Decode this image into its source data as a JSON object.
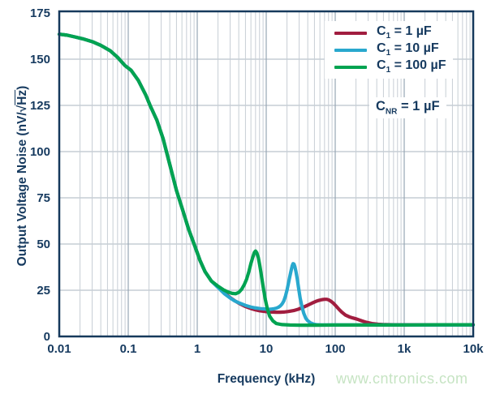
{
  "chart_data": {
    "type": "line",
    "title": "",
    "xlabel": "Frequency (kHz)",
    "ylabel": "Output Voltage Noise (nV/√Hz)",
    "ylabel_parts": {
      "pre": "Output Voltage Noise (nV/√",
      "over": "Hz",
      "post": ")"
    },
    "x_scale": "log",
    "xlim": [
      0.01,
      10000
    ],
    "ylim": [
      0,
      175
    ],
    "y_tick_step": 25,
    "x_tick_labels": [
      "0.01",
      "0.1",
      "1",
      "10",
      "100",
      "1k",
      "10k"
    ],
    "y_tick_labels": [
      "0",
      "25",
      "50",
      "75",
      "100",
      "125",
      "150",
      "175"
    ],
    "grid": "horizontal majors + vertical log minors, inside full frame",
    "legend_position": "top-right-inside",
    "annotation": {
      "label_pre": "C",
      "label_sub": "NR",
      "label_post": " = 1 µF"
    },
    "series": [
      {
        "name": "C1 = 1 uF",
        "label_pre": "C",
        "label_sub": "1",
        "label_post": " = 1 µF",
        "color": "#a11d3f",
        "points": [
          [
            0.01,
            163.5
          ],
          [
            0.013,
            163
          ],
          [
            0.017,
            162
          ],
          [
            0.022,
            161
          ],
          [
            0.03,
            159.5
          ],
          [
            0.04,
            157.5
          ],
          [
            0.055,
            154.5
          ],
          [
            0.07,
            151
          ],
          [
            0.09,
            146.5
          ],
          [
            0.11,
            144
          ],
          [
            0.14,
            138.5
          ],
          [
            0.18,
            130.5
          ],
          [
            0.21,
            124.5
          ],
          [
            0.26,
            117
          ],
          [
            0.32,
            107
          ],
          [
            0.4,
            93
          ],
          [
            0.5,
            79
          ],
          [
            0.62,
            68
          ],
          [
            0.75,
            58
          ],
          [
            0.9,
            50
          ],
          [
            1.1,
            41
          ],
          [
            1.3,
            35
          ],
          [
            1.6,
            30
          ],
          [
            2,
            27
          ],
          [
            2.5,
            23.5
          ],
          [
            3,
            21
          ],
          [
            3.5,
            19.3
          ],
          [
            4,
            18
          ],
          [
            5,
            16.2
          ],
          [
            6,
            15.1
          ],
          [
            7,
            14.4
          ],
          [
            8,
            13.9
          ],
          [
            10,
            13.4
          ],
          [
            12,
            13.2
          ],
          [
            14,
            13.1
          ],
          [
            16,
            13.1
          ],
          [
            18,
            13.2
          ],
          [
            21,
            13.5
          ],
          [
            25,
            14
          ],
          [
            29,
            14.7
          ],
          [
            34,
            15.7
          ],
          [
            40,
            16.9
          ],
          [
            46,
            18
          ],
          [
            52,
            18.9
          ],
          [
            58,
            19.5
          ],
          [
            64,
            19.9
          ],
          [
            70,
            20.1
          ],
          [
            75,
            20.1
          ],
          [
            80,
            19.8
          ],
          [
            87,
            19
          ],
          [
            94,
            18
          ],
          [
            102,
            16.6
          ],
          [
            112,
            14.9
          ],
          [
            124,
            13.2
          ],
          [
            140,
            11.6
          ],
          [
            160,
            10.6
          ],
          [
            180,
            10
          ],
          [
            205,
            9.4
          ],
          [
            240,
            8.5
          ],
          [
            280,
            7.7
          ],
          [
            340,
            7
          ],
          [
            420,
            6.6
          ],
          [
            520,
            6.4
          ],
          [
            700,
            6.3
          ],
          [
            1000,
            6.3
          ],
          [
            2500,
            6.3
          ],
          [
            5000,
            6.3
          ],
          [
            10000,
            6.3
          ]
        ]
      },
      {
        "name": "C1 = 10 uF",
        "label_pre": "C",
        "label_sub": "1",
        "label_post": " = 10 µF",
        "color": "#29a8ce",
        "points": [
          [
            0.01,
            163.5
          ],
          [
            0.013,
            163
          ],
          [
            0.017,
            162
          ],
          [
            0.022,
            161
          ],
          [
            0.03,
            159.5
          ],
          [
            0.04,
            157.5
          ],
          [
            0.055,
            154.5
          ],
          [
            0.07,
            151
          ],
          [
            0.09,
            146.5
          ],
          [
            0.11,
            144
          ],
          [
            0.14,
            138.5
          ],
          [
            0.18,
            130.5
          ],
          [
            0.21,
            124.5
          ],
          [
            0.26,
            117
          ],
          [
            0.32,
            107
          ],
          [
            0.4,
            93
          ],
          [
            0.5,
            79
          ],
          [
            0.62,
            68
          ],
          [
            0.75,
            58
          ],
          [
            0.9,
            50
          ],
          [
            1.1,
            41
          ],
          [
            1.3,
            35
          ],
          [
            1.6,
            30
          ],
          [
            2,
            26.5
          ],
          [
            2.5,
            23
          ],
          [
            3,
            20.8
          ],
          [
            3.5,
            19.2
          ],
          [
            4,
            18.2
          ],
          [
            5,
            16.8
          ],
          [
            6,
            15.9
          ],
          [
            7,
            15.4
          ],
          [
            8,
            15.1
          ],
          [
            9,
            14.9
          ],
          [
            10,
            14.8
          ],
          [
            11,
            14.7
          ],
          [
            12,
            14.8
          ],
          [
            13,
            15
          ],
          [
            14,
            15.3
          ],
          [
            15,
            15.8
          ],
          [
            16,
            16.5
          ],
          [
            17,
            17.6
          ],
          [
            18,
            19.2
          ],
          [
            19,
            21.8
          ],
          [
            20,
            25
          ],
          [
            21,
            28.8
          ],
          [
            22,
            32.5
          ],
          [
            23,
            35.8
          ],
          [
            23.8,
            38.2
          ],
          [
            24.5,
            39.4
          ],
          [
            25.2,
            39.2
          ],
          [
            26,
            37.8
          ],
          [
            27,
            35
          ],
          [
            28.2,
            31
          ],
          [
            29.5,
            26
          ],
          [
            31,
            20.8
          ],
          [
            33,
            16
          ],
          [
            35,
            12.5
          ],
          [
            37.5,
            9.8
          ],
          [
            40,
            8.5
          ],
          [
            44,
            7.3
          ],
          [
            49,
            6.6
          ],
          [
            55,
            6.3
          ],
          [
            65,
            6.2
          ],
          [
            85,
            6.2
          ],
          [
            150,
            6.2
          ],
          [
            400,
            6.2
          ],
          [
            1000,
            6.2
          ],
          [
            3000,
            6.2
          ],
          [
            10000,
            6.2
          ]
        ]
      },
      {
        "name": "C1 = 100 uF",
        "label_pre": "C",
        "label_sub": "1",
        "label_post": " = 100 µF",
        "color": "#00a351",
        "points": [
          [
            0.01,
            163.5
          ],
          [
            0.013,
            163
          ],
          [
            0.017,
            162
          ],
          [
            0.022,
            161
          ],
          [
            0.03,
            159.5
          ],
          [
            0.04,
            157.5
          ],
          [
            0.055,
            154.5
          ],
          [
            0.07,
            151
          ],
          [
            0.09,
            146.5
          ],
          [
            0.11,
            144
          ],
          [
            0.14,
            138.5
          ],
          [
            0.18,
            130.5
          ],
          [
            0.21,
            124.5
          ],
          [
            0.26,
            117
          ],
          [
            0.32,
            107
          ],
          [
            0.4,
            93
          ],
          [
            0.5,
            79
          ],
          [
            0.62,
            68
          ],
          [
            0.75,
            58
          ],
          [
            0.9,
            50
          ],
          [
            1.1,
            41
          ],
          [
            1.3,
            35
          ],
          [
            1.6,
            30
          ],
          [
            2,
            27.2
          ],
          [
            2.4,
            25.2
          ],
          [
            2.8,
            24
          ],
          [
            3.2,
            23.3
          ],
          [
            3.6,
            23.1
          ],
          [
            4,
            23.8
          ],
          [
            4.4,
            25.5
          ],
          [
            4.8,
            28
          ],
          [
            5.2,
            31
          ],
          [
            5.6,
            35
          ],
          [
            6,
            39.5
          ],
          [
            6.4,
            43
          ],
          [
            6.7,
            45.3
          ],
          [
            7,
            46.2
          ],
          [
            7.3,
            45.3
          ],
          [
            7.7,
            42.5
          ],
          [
            8.1,
            38
          ],
          [
            8.6,
            32
          ],
          [
            9.1,
            26
          ],
          [
            9.7,
            20
          ],
          [
            10.4,
            14.8
          ],
          [
            11.2,
            11
          ],
          [
            12.5,
            8.4
          ],
          [
            14,
            7
          ],
          [
            17,
            6.4
          ],
          [
            22,
            6.2
          ],
          [
            30,
            6.1
          ],
          [
            50,
            6.1
          ],
          [
            100,
            6.2
          ],
          [
            300,
            6.2
          ],
          [
            1000,
            6.2
          ],
          [
            3000,
            6.3
          ],
          [
            10000,
            6.3
          ]
        ]
      }
    ]
  },
  "watermark": {
    "text": "www.cntronics.com",
    "color": "#c6e4c3"
  },
  "colors": {
    "axis_text": "#163a5f",
    "frame": "#16395c",
    "grid_minor": "#c7ced5",
    "grid_major_vertical": "#97a6b3",
    "grid_horizontal": "#a9b4bf",
    "background": "#ffffff"
  }
}
